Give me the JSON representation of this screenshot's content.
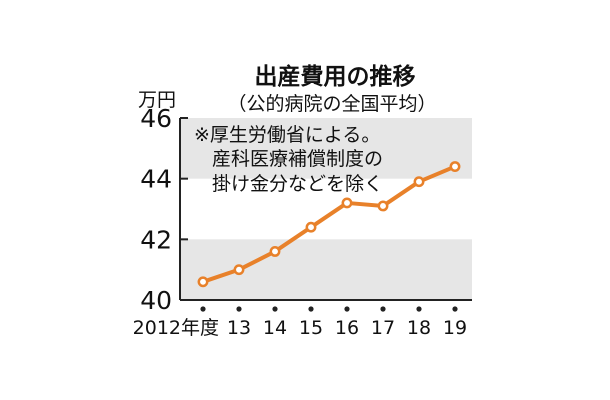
{
  "chart_data": {
    "type": "line",
    "title": "出産費用の推移",
    "subtitle": "（公的病院の全国平均）",
    "ylabel": "万円",
    "ylim": [
      40,
      46
    ],
    "y_ticks": [
      "40",
      "42",
      "44",
      "46"
    ],
    "band_fill": "#e6e6e6",
    "grid": false,
    "categories": [
      "2012年度",
      "13",
      "14",
      "15",
      "16",
      "17",
      "18",
      "19"
    ],
    "series": [
      {
        "values": [
          40.6,
          41.0,
          41.6,
          42.4,
          43.2,
          43.1,
          43.9,
          44.4
        ],
        "color": "#e8812a"
      }
    ],
    "note": [
      "※厚生労働省による。",
      "産科医療補償制度の",
      "掛け金分などを除く"
    ]
  }
}
